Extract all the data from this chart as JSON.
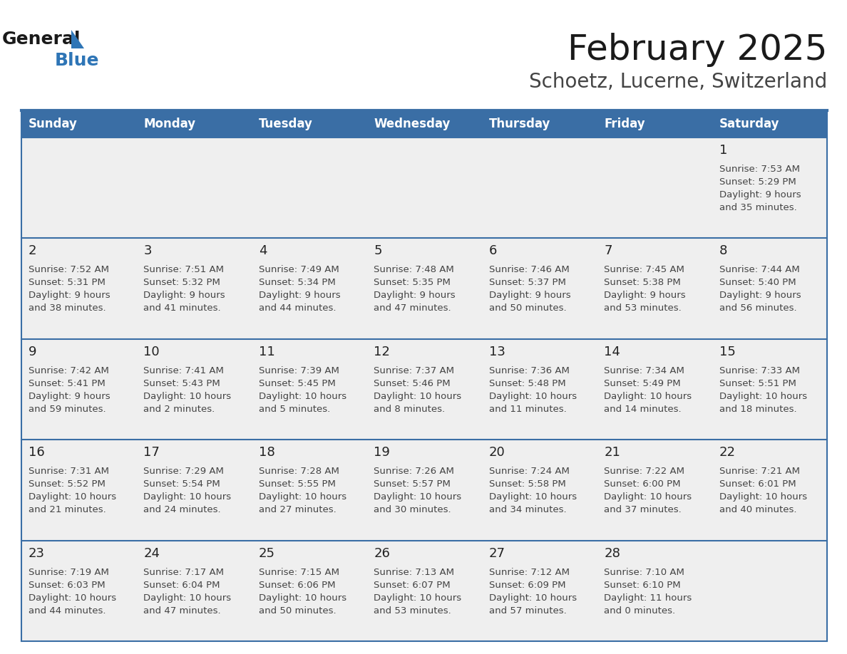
{
  "title": "February 2025",
  "subtitle": "Schoetz, Lucerne, Switzerland",
  "days_of_week": [
    "Sunday",
    "Monday",
    "Tuesday",
    "Wednesday",
    "Thursday",
    "Friday",
    "Saturday"
  ],
  "header_bg": "#3A6EA5",
  "header_text_color": "#FFFFFF",
  "cell_bg": "#EFEFEF",
  "cell_border_color": "#3A6EA5",
  "day_number_color": "#222222",
  "text_color": "#444444",
  "title_color": "#1a1a1a",
  "subtitle_color": "#444444",
  "blue_color": "#3A6EA5",
  "logo_black": "#1a1a1a",
  "logo_blue": "#2E75B6",
  "calendar_data": [
    [
      null,
      null,
      null,
      null,
      null,
      null,
      {
        "day": 1,
        "sunrise": "7:53 AM",
        "sunset": "5:29 PM",
        "daylight": "9 hours and 35 minutes."
      }
    ],
    [
      {
        "day": 2,
        "sunrise": "7:52 AM",
        "sunset": "5:31 PM",
        "daylight": "9 hours and 38 minutes."
      },
      {
        "day": 3,
        "sunrise": "7:51 AM",
        "sunset": "5:32 PM",
        "daylight": "9 hours and 41 minutes."
      },
      {
        "day": 4,
        "sunrise": "7:49 AM",
        "sunset": "5:34 PM",
        "daylight": "9 hours and 44 minutes."
      },
      {
        "day": 5,
        "sunrise": "7:48 AM",
        "sunset": "5:35 PM",
        "daylight": "9 hours and 47 minutes."
      },
      {
        "day": 6,
        "sunrise": "7:46 AM",
        "sunset": "5:37 PM",
        "daylight": "9 hours and 50 minutes."
      },
      {
        "day": 7,
        "sunrise": "7:45 AM",
        "sunset": "5:38 PM",
        "daylight": "9 hours and 53 minutes."
      },
      {
        "day": 8,
        "sunrise": "7:44 AM",
        "sunset": "5:40 PM",
        "daylight": "9 hours and 56 minutes."
      }
    ],
    [
      {
        "day": 9,
        "sunrise": "7:42 AM",
        "sunset": "5:41 PM",
        "daylight": "9 hours and 59 minutes."
      },
      {
        "day": 10,
        "sunrise": "7:41 AM",
        "sunset": "5:43 PM",
        "daylight": "10 hours and 2 minutes."
      },
      {
        "day": 11,
        "sunrise": "7:39 AM",
        "sunset": "5:45 PM",
        "daylight": "10 hours and 5 minutes."
      },
      {
        "day": 12,
        "sunrise": "7:37 AM",
        "sunset": "5:46 PM",
        "daylight": "10 hours and 8 minutes."
      },
      {
        "day": 13,
        "sunrise": "7:36 AM",
        "sunset": "5:48 PM",
        "daylight": "10 hours and 11 minutes."
      },
      {
        "day": 14,
        "sunrise": "7:34 AM",
        "sunset": "5:49 PM",
        "daylight": "10 hours and 14 minutes."
      },
      {
        "day": 15,
        "sunrise": "7:33 AM",
        "sunset": "5:51 PM",
        "daylight": "10 hours and 18 minutes."
      }
    ],
    [
      {
        "day": 16,
        "sunrise": "7:31 AM",
        "sunset": "5:52 PM",
        "daylight": "10 hours and 21 minutes."
      },
      {
        "day": 17,
        "sunrise": "7:29 AM",
        "sunset": "5:54 PM",
        "daylight": "10 hours and 24 minutes."
      },
      {
        "day": 18,
        "sunrise": "7:28 AM",
        "sunset": "5:55 PM",
        "daylight": "10 hours and 27 minutes."
      },
      {
        "day": 19,
        "sunrise": "7:26 AM",
        "sunset": "5:57 PM",
        "daylight": "10 hours and 30 minutes."
      },
      {
        "day": 20,
        "sunrise": "7:24 AM",
        "sunset": "5:58 PM",
        "daylight": "10 hours and 34 minutes."
      },
      {
        "day": 21,
        "sunrise": "7:22 AM",
        "sunset": "6:00 PM",
        "daylight": "10 hours and 37 minutes."
      },
      {
        "day": 22,
        "sunrise": "7:21 AM",
        "sunset": "6:01 PM",
        "daylight": "10 hours and 40 minutes."
      }
    ],
    [
      {
        "day": 23,
        "sunrise": "7:19 AM",
        "sunset": "6:03 PM",
        "daylight": "10 hours and 44 minutes."
      },
      {
        "day": 24,
        "sunrise": "7:17 AM",
        "sunset": "6:04 PM",
        "daylight": "10 hours and 47 minutes."
      },
      {
        "day": 25,
        "sunrise": "7:15 AM",
        "sunset": "6:06 PM",
        "daylight": "10 hours and 50 minutes."
      },
      {
        "day": 26,
        "sunrise": "7:13 AM",
        "sunset": "6:07 PM",
        "daylight": "10 hours and 53 minutes."
      },
      {
        "day": 27,
        "sunrise": "7:12 AM",
        "sunset": "6:09 PM",
        "daylight": "10 hours and 57 minutes."
      },
      {
        "day": 28,
        "sunrise": "7:10 AM",
        "sunset": "6:10 PM",
        "daylight": "11 hours and 0 minutes."
      },
      null
    ]
  ]
}
